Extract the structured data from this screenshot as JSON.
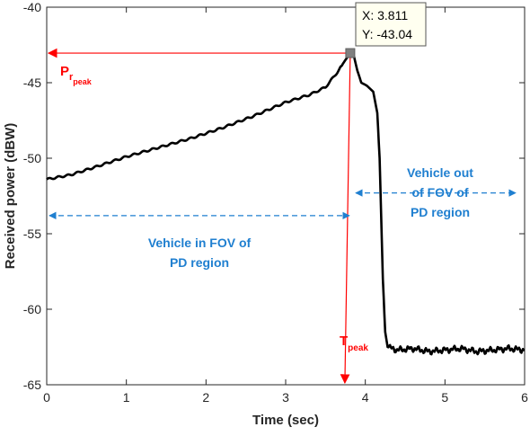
{
  "chart_data": {
    "type": "line",
    "title": "",
    "xlabel": "Time (sec)",
    "ylabel": "Received power (dBW)",
    "xlim": [
      0,
      6
    ],
    "ylim": [
      -65,
      -40
    ],
    "x_ticks": [
      "0",
      "1",
      "2",
      "3",
      "4",
      "5",
      "6"
    ],
    "y_ticks": [
      "-40",
      "-45",
      "-50",
      "-55",
      "-60",
      "-65"
    ],
    "grid": false,
    "series": [
      {
        "color": "#000000",
        "points": [
          [
            0.0,
            -51.4
          ],
          [
            0.3,
            -51.1
          ],
          [
            0.6,
            -50.6
          ],
          [
            1.0,
            -49.9
          ],
          [
            1.4,
            -49.3
          ],
          [
            1.8,
            -48.7
          ],
          [
            2.2,
            -48.0
          ],
          [
            2.6,
            -47.2
          ],
          [
            3.0,
            -46.3
          ],
          [
            3.3,
            -45.8
          ],
          [
            3.5,
            -45.3
          ],
          [
            3.65,
            -44.3
          ],
          [
            3.75,
            -43.5
          ],
          [
            3.811,
            -43.04
          ],
          [
            3.86,
            -43.3
          ],
          [
            3.9,
            -44.2
          ],
          [
            3.95,
            -45.0
          ],
          [
            4.02,
            -45.2
          ],
          [
            4.1,
            -45.6
          ],
          [
            4.15,
            -47.0
          ],
          [
            4.18,
            -50.0
          ],
          [
            4.2,
            -54.0
          ],
          [
            4.22,
            -58.0
          ],
          [
            4.25,
            -61.5
          ],
          [
            4.28,
            -62.5
          ],
          [
            4.4,
            -62.7
          ],
          [
            4.6,
            -62.6
          ],
          [
            4.8,
            -62.8
          ],
          [
            5.0,
            -62.7
          ],
          [
            5.2,
            -62.6
          ],
          [
            5.4,
            -62.8
          ],
          [
            5.6,
            -62.7
          ],
          [
            5.8,
            -62.6
          ],
          [
            6.0,
            -62.7
          ]
        ]
      }
    ],
    "datatip": {
      "x": 3.811,
      "y": -43.04,
      "x_label": "X: 3.811",
      "y_label": "Y: -43.04"
    },
    "annotations": {
      "p_main": "P",
      "p_sub1": "r",
      "p_sub2": "peak",
      "t_main": "T",
      "t_sub": "peak",
      "in_fov_line1": "Vehicle in FOV of",
      "in_fov_line2": "PD region",
      "out_fov_line1": "Vehicle out",
      "out_fov_line2": "of FOV of",
      "out_fov_line3": "PD region"
    },
    "colors": {
      "peak_markers": "#ff0000",
      "region_arrows": "#1f7fd0",
      "curve": "#000000"
    }
  }
}
